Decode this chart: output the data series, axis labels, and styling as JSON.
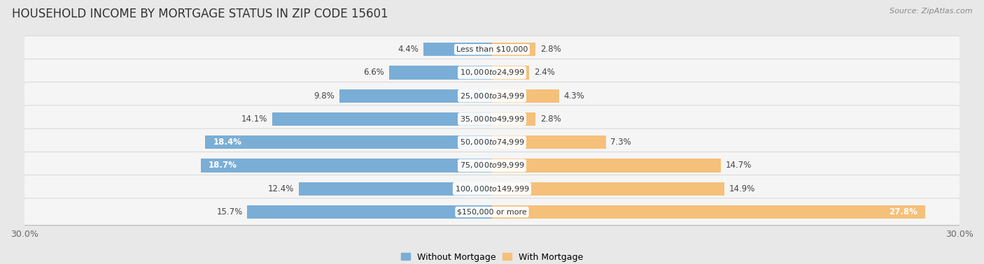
{
  "title": "HOUSEHOLD INCOME BY MORTGAGE STATUS IN ZIP CODE 15601",
  "source": "Source: ZipAtlas.com",
  "categories": [
    "Less than $10,000",
    "$10,000 to $24,999",
    "$25,000 to $34,999",
    "$35,000 to $49,999",
    "$50,000 to $74,999",
    "$75,000 to $99,999",
    "$100,000 to $149,999",
    "$150,000 or more"
  ],
  "without_mortgage": [
    4.4,
    6.6,
    9.8,
    14.1,
    18.4,
    18.7,
    12.4,
    15.7
  ],
  "with_mortgage": [
    2.8,
    2.4,
    4.3,
    2.8,
    7.3,
    14.7,
    14.9,
    27.8
  ],
  "color_without": "#7aaed6",
  "color_with": "#f5c07a",
  "xlim": 30.0,
  "background_color": "#e8e8e8",
  "row_bg": "#f5f5f5",
  "title_fontsize": 12,
  "bar_height": 0.58,
  "legend_labels": [
    "Without Mortgage",
    "With Mortgage"
  ],
  "label_fontsize": 8.5,
  "cat_fontsize": 8
}
